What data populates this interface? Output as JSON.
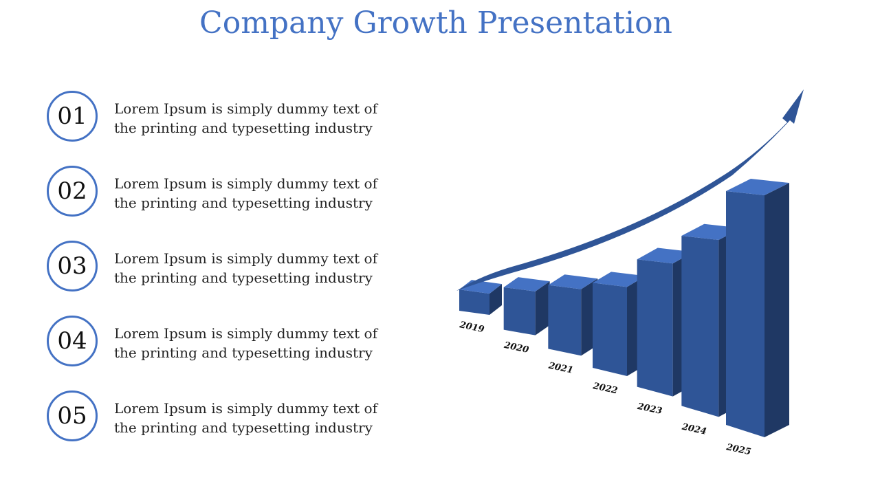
{
  "title": "Company Growth Presentation",
  "items": [
    {
      "number": "01",
      "line1": "Lorem Ipsum is simply dummy text of",
      "line2": "the printing and typesetting industry"
    },
    {
      "number": "02",
      "line1": "Lorem Ipsum is simply dummy text of",
      "line2": "the printing and typesetting industry"
    },
    {
      "number": "03",
      "line1": "Lorem Ipsum is simply dummy text of",
      "line2": "the printing and typesetting industry"
    },
    {
      "number": "04",
      "line1": "Lorem Ipsum is simply dummy text of",
      "line2": "the printing and typesetting industry"
    },
    {
      "number": "05",
      "line1": "Lorem Ipsum is simply dummy text of",
      "line2": "the printing and typesetting industry"
    }
  ],
  "colors": {
    "accent": "#4472c4",
    "bar_front": "#2f5597",
    "bar_top": "#4472c4",
    "bar_side": "#1f3864"
  },
  "chart_data": {
    "type": "bar",
    "categories": [
      "2019",
      "2020",
      "2021",
      "2022",
      "2023",
      "2024",
      "2025"
    ],
    "values": [
      1,
      2,
      3,
      4,
      6,
      8,
      11
    ],
    "trend_arrow": "up-right"
  }
}
